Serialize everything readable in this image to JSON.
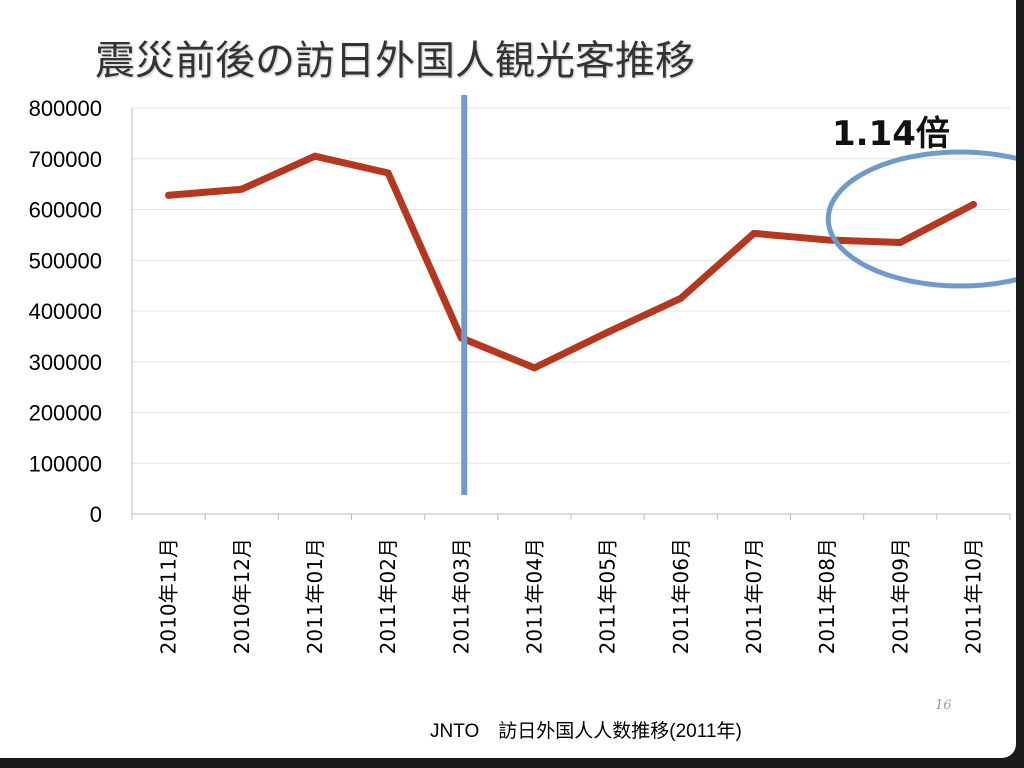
{
  "title": "震災前後の訪日外国人観光客推移",
  "annotation": "1.14倍",
  "source": "JNTO　訪日外国人人数推移(2011年)",
  "page_number": "16",
  "colors": {
    "line": "#b5381e",
    "event_marker": "#6f9bcb",
    "highlight_ellipse": "#6f9bcb"
  },
  "chart_data": {
    "type": "line",
    "categories": [
      "2010年11月",
      "2010年12月",
      "2011年01月",
      "2011年02月",
      "2011年03月",
      "2011年04月",
      "2011年05月",
      "2011年06月",
      "2011年07月",
      "2011年08月",
      "2011年09月",
      "2011年10月"
    ],
    "series": [
      {
        "values": [
          628000,
          640000,
          705000,
          672000,
          347000,
          288000,
          358000,
          425000,
          553000,
          540000,
          535000,
          610000
        ]
      }
    ],
    "ylim": [
      0,
      800000
    ],
    "yticks": [
      "0",
      "100000",
      "200000",
      "300000",
      "400000",
      "500000",
      "600000",
      "700000",
      "800000"
    ],
    "grid": true,
    "event_marker_category": "2011年03月",
    "highlight_categories": [
      "2011年08月",
      "2011年10月"
    ]
  }
}
